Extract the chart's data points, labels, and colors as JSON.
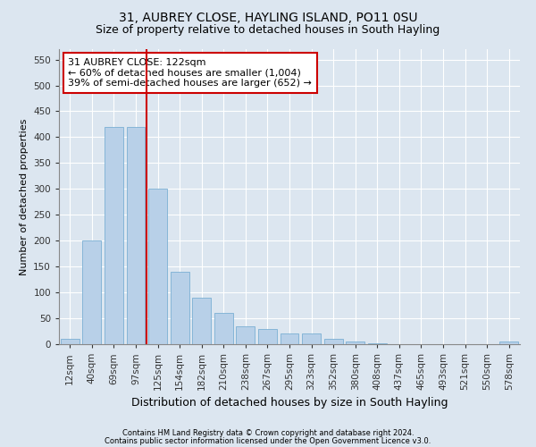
{
  "title": "31, AUBREY CLOSE, HAYLING ISLAND, PO11 0SU",
  "subtitle": "Size of property relative to detached houses in South Hayling",
  "xlabel": "Distribution of detached houses by size in South Hayling",
  "ylabel": "Number of detached properties",
  "footer_line1": "Contains HM Land Registry data © Crown copyright and database right 2024.",
  "footer_line2": "Contains public sector information licensed under the Open Government Licence v3.0.",
  "bar_labels": [
    "12sqm",
    "40sqm",
    "69sqm",
    "97sqm",
    "125sqm",
    "154sqm",
    "182sqm",
    "210sqm",
    "238sqm",
    "267sqm",
    "295sqm",
    "323sqm",
    "352sqm",
    "380sqm",
    "408sqm",
    "437sqm",
    "465sqm",
    "493sqm",
    "521sqm",
    "550sqm",
    "578sqm"
  ],
  "bar_values": [
    10,
    200,
    420,
    420,
    300,
    140,
    90,
    60,
    35,
    30,
    20,
    20,
    10,
    5,
    2,
    0,
    0,
    0,
    0,
    0,
    5
  ],
  "bar_color": "#b8d0e8",
  "bar_edgecolor": "#7bafd4",
  "vline_index": 3.5,
  "vline_color": "#cc0000",
  "annotation_text": "31 AUBREY CLOSE: 122sqm\n← 60% of detached houses are smaller (1,004)\n39% of semi-detached houses are larger (652) →",
  "annotation_box_facecolor": "#ffffff",
  "annotation_box_edgecolor": "#cc0000",
  "ylim": [
    0,
    570
  ],
  "yticks": [
    0,
    50,
    100,
    150,
    200,
    250,
    300,
    350,
    400,
    450,
    500,
    550
  ],
  "background_color": "#dce6f0",
  "plot_background_color": "#dce6f0",
  "title_fontsize": 10,
  "subtitle_fontsize": 9,
  "xlabel_fontsize": 9,
  "ylabel_fontsize": 8,
  "tick_fontsize": 7.5,
  "annotation_fontsize": 8,
  "footer_fontsize": 6
}
